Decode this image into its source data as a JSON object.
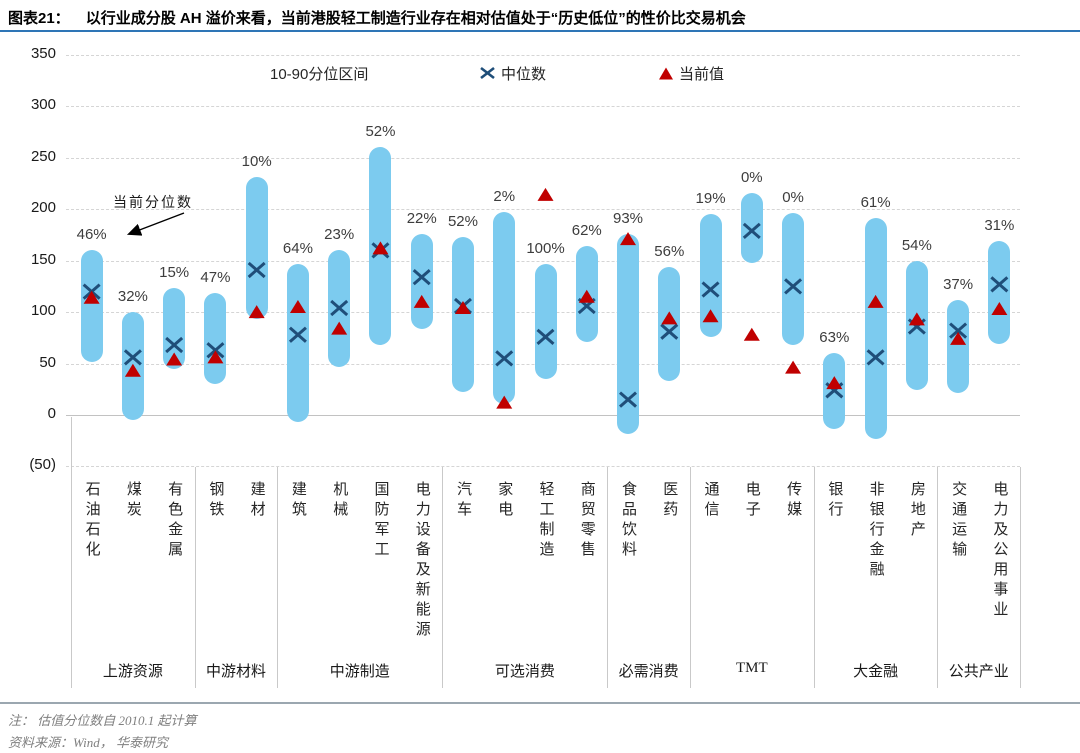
{
  "header": {
    "figure_label": "图表21：",
    "title": "以行业成分股 AH 溢价来看，当前港股轻工制造行业存在相对估值处于“历史低位”的性价比交易机会"
  },
  "chart_data": {
    "type": "range-bar",
    "description": "AH premium 10th-90th percentile range per industry with median (X) and current value (triangle) markers; percentage above each bar is the current percentile",
    "legend_range": "10-90分位区间",
    "legend_median": "中位数",
    "legend_current": "当前值",
    "annotation": "当前分位数",
    "ylim": [
      -50,
      350
    ],
    "yticks": [
      350,
      300,
      250,
      200,
      150,
      100,
      50,
      0,
      -50
    ],
    "ytick_labels": [
      "350",
      "300",
      "250",
      "200",
      "150",
      "100",
      "50",
      "0",
      "(50)"
    ],
    "grid": "horizontal dashed, solid at zero",
    "legend_position": "top inside",
    "colors": {
      "range_bar": "#7CCBEF",
      "median_marker": "#1F4E79",
      "current_marker": "#C00000",
      "title_rule": "#2E75B6"
    },
    "groups": [
      {
        "label": "上游资源",
        "count": 3
      },
      {
        "label": "中游材料",
        "count": 2
      },
      {
        "label": "中游制造",
        "count": 4
      },
      {
        "label": "可选消费",
        "count": 4
      },
      {
        "label": "必需消费",
        "count": 2
      },
      {
        "label": "TMT",
        "count": 3
      },
      {
        "label": "大金融",
        "count": 3
      },
      {
        "label": "公共产业",
        "count": 2
      }
    ],
    "sectors": [
      {
        "name": "石油石化",
        "percentile_label": "46%",
        "p10": 52,
        "p90": 160,
        "median": 120,
        "current": 114
      },
      {
        "name": "煤炭",
        "percentile_label": "32%",
        "p10": -5,
        "p90": 100,
        "median": 56,
        "current": 43
      },
      {
        "name": "有色金属",
        "percentile_label": "15%",
        "p10": 45,
        "p90": 123,
        "median": 68,
        "current": 54
      },
      {
        "name": "钢铁",
        "percentile_label": "47%",
        "p10": 30,
        "p90": 119,
        "median": 63,
        "current": 56
      },
      {
        "name": "建材",
        "percentile_label": "10%",
        "p10": 93,
        "p90": 231,
        "median": 141,
        "current": 100
      },
      {
        "name": "建筑",
        "percentile_label": "64%",
        "p10": -7,
        "p90": 147,
        "median": 78,
        "current": 105
      },
      {
        "name": "机械",
        "percentile_label": "23%",
        "p10": 47,
        "p90": 160,
        "median": 104,
        "current": 84
      },
      {
        "name": "国防军工",
        "percentile_label": "52%",
        "p10": 68,
        "p90": 261,
        "median": 160,
        "current": 162
      },
      {
        "name": "电力设备及新能源",
        "percentile_label": "22%",
        "p10": 84,
        "p90": 176,
        "median": 134,
        "current": 110
      },
      {
        "name": "汽车",
        "percentile_label": "52%",
        "p10": 22,
        "p90": 173,
        "median": 106,
        "current": 104
      },
      {
        "name": "家电",
        "percentile_label": "2%",
        "p10": 11,
        "p90": 197,
        "median": 55,
        "current": 12
      },
      {
        "name": "轻工制造",
        "percentile_label": "100%",
        "p10": 35,
        "p90": 147,
        "median": 76,
        "current": 214
      },
      {
        "name": "商贸零售",
        "percentile_label": "62%",
        "p10": 71,
        "p90": 164,
        "median": 106,
        "current": 115
      },
      {
        "name": "食品饮料",
        "percentile_label": "93%",
        "p10": -18,
        "p90": 176,
        "median": 15,
        "current": 171
      },
      {
        "name": "医药",
        "percentile_label": "56%",
        "p10": 33,
        "p90": 144,
        "median": 81,
        "current": 94
      },
      {
        "name": "通信",
        "percentile_label": "19%",
        "p10": 76,
        "p90": 195,
        "median": 122,
        "current": 96
      },
      {
        "name": "电子",
        "percentile_label": "0%",
        "p10": 148,
        "p90": 216,
        "median": 179,
        "current": 78
      },
      {
        "name": "传媒",
        "percentile_label": "0%",
        "p10": 68,
        "p90": 196,
        "median": 125,
        "current": 46
      },
      {
        "name": "银行",
        "percentile_label": "63%",
        "p10": -14,
        "p90": 60,
        "median": 24,
        "current": 31
      },
      {
        "name": "非银行金融",
        "percentile_label": "61%",
        "p10": -23,
        "p90": 192,
        "median": 56,
        "current": 110
      },
      {
        "name": "房地产",
        "percentile_label": "54%",
        "p10": 24,
        "p90": 150,
        "median": 86,
        "current": 93
      },
      {
        "name": "交通运输",
        "percentile_label": "37%",
        "p10": 21,
        "p90": 112,
        "median": 82,
        "current": 74
      },
      {
        "name": "电力及公用事业",
        "percentile_label": "31%",
        "p10": 69,
        "p90": 169,
        "median": 127,
        "current": 103
      }
    ]
  },
  "footer": {
    "note": "注： 估值分位数自 2010.1 起计算",
    "source": "资料来源：Wind， 华泰研究"
  }
}
